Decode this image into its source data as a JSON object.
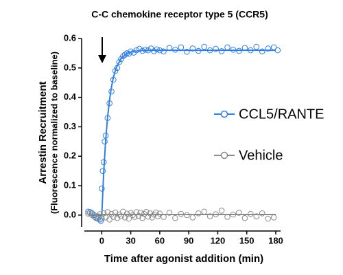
{
  "chart_data": {
    "type": "scatter",
    "title": "C-C chemokine receptor type 5 (CCR5)",
    "xlabel": "Time after agonist addition (min)",
    "ylabel": [
      "Arrestin Recruitment",
      "(Fluorescence normalized to baseline)"
    ],
    "xlim": [
      -18,
      185
    ],
    "ylim": [
      -0.04,
      0.6
    ],
    "xticks": [
      0,
      30,
      60,
      90,
      120,
      150,
      180
    ],
    "yticks": [
      {
        "value": 0,
        "label": "0.0"
      },
      0.1,
      0.2,
      0.3,
      0.4,
      0.5,
      0.6
    ],
    "series": [
      {
        "name": "CCL5/RANTE",
        "color": "#2f7fe0",
        "x": [
          -14,
          -12,
          -10,
          -8,
          -6,
          -4,
          -2,
          -1,
          0,
          1,
          2,
          3,
          4,
          6,
          8,
          10,
          12,
          14,
          16,
          18,
          20,
          22,
          24,
          26,
          28,
          30,
          33,
          36,
          39,
          42,
          45,
          48,
          51,
          54,
          57,
          60,
          64,
          70,
          76,
          82,
          88,
          94,
          100,
          106,
          112,
          118,
          124,
          130,
          136,
          142,
          148,
          154,
          160,
          166,
          172,
          178,
          182
        ],
        "values": [
          0.012,
          0.01,
          0.006,
          0,
          -0.008,
          -0.012,
          -0.015,
          -0.02,
          0.09,
          0.15,
          0.18,
          0.25,
          0.27,
          0.33,
          0.38,
          0.42,
          0.46,
          0.49,
          0.5,
          0.52,
          0.53,
          0.54,
          0.545,
          0.55,
          0.548,
          0.556,
          0.552,
          0.56,
          0.565,
          0.558,
          0.562,
          0.56,
          0.566,
          0.557,
          0.563,
          0.56,
          0.556,
          0.568,
          0.562,
          0.57,
          0.555,
          0.566,
          0.558,
          0.572,
          0.56,
          0.565,
          0.557,
          0.57,
          0.562,
          0.558,
          0.568,
          0.56,
          0.572,
          0.556,
          0.566,
          0.57,
          0.56
        ],
        "fit": {
          "x": [
            -14,
            0,
            2,
            4,
            6,
            8,
            10,
            12,
            15,
            20,
            25,
            30,
            40,
            50,
            60,
            180
          ],
          "values": [
            0,
            0,
            0.145,
            0.253,
            0.332,
            0.391,
            0.435,
            0.468,
            0.501,
            0.532,
            0.547,
            0.554,
            0.559,
            0.56,
            0.56,
            0.56
          ]
        }
      },
      {
        "name": "Vehicle",
        "color": "#8a8a8a",
        "x": [
          -14,
          -12,
          -10,
          -8,
          -6,
          -4,
          -2,
          0,
          2,
          4,
          6,
          8,
          10,
          12,
          14,
          16,
          18,
          20,
          22,
          24,
          26,
          28,
          30,
          32,
          34,
          36,
          38,
          40,
          42,
          44,
          46,
          48,
          50,
          52,
          54,
          56,
          58,
          60,
          64,
          70,
          76,
          82,
          88,
          94,
          100,
          106,
          112,
          118,
          124,
          130,
          136,
          142,
          148,
          154,
          160,
          166,
          172,
          178
        ],
        "values": [
          0.005,
          0.008,
          0,
          -0.005,
          -0.01,
          -0.004,
          0.003,
          -0.012,
          0.006,
          -0.008,
          0.01,
          -0.015,
          0.004,
          -0.006,
          0.009,
          -0.01,
          0.002,
          -0.004,
          0.012,
          -0.008,
          0.005,
          -0.012,
          0.007,
          0,
          -0.006,
          0.01,
          -0.003,
          0.008,
          -0.01,
          0.004,
          0.011,
          -0.005,
          0.006,
          -0.008,
          0.002,
          0.009,
          -0.004,
          0.005,
          -0.006,
          0.008,
          -0.01,
          0.004,
          0,
          -0.008,
          0.006,
          0.012,
          -0.004,
          0.003,
          0.015,
          -0.006,
          0.002,
          0.008,
          -0.01,
          0.004,
          -0.004,
          0.006,
          -0.012,
          -0.008
        ],
        "fit": {
          "x": [
            -14,
            180
          ],
          "values": [
            0.002,
            0.002
          ]
        }
      }
    ]
  }
}
